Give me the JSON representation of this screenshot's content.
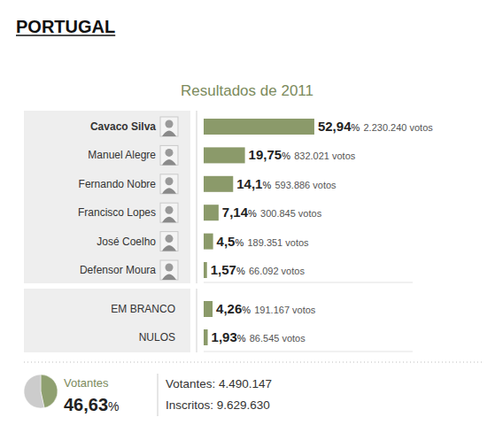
{
  "chart_data": [
    {
      "type": "bar",
      "orientation": "horizontal",
      "title": "PORTUGAL",
      "subtitle": "Resultados de 2011",
      "categories": [
        "Cavaco Silva",
        "Manuel Alegre",
        "Fernando Nobre",
        "Francisco Lopes",
        "José Coelho",
        "Defensor Moura"
      ],
      "values": [
        52.94,
        19.75,
        14.1,
        7.14,
        4.5,
        1.57
      ],
      "value_labels": [
        "52,94%",
        "19,75%",
        "14,1%",
        "7,14%",
        "4,5%",
        "1,57%"
      ],
      "votes": [
        2230240,
        832021,
        593886,
        300845,
        189351,
        66092
      ],
      "votes_labels": [
        "2.230.240 votos",
        "832.021 votos",
        "593.886 votos",
        "300.845 votos",
        "189.351 votos",
        "66.092 votos"
      ],
      "color": "#8b9a6a",
      "xlim": [
        0,
        100
      ],
      "xticks": [],
      "tick_labels": "y",
      "data_labels": true,
      "grid": false
    },
    {
      "type": "bar",
      "orientation": "horizontal",
      "categories": [
        "EM BRANCO",
        "NULOS"
      ],
      "values": [
        4.26,
        1.93
      ],
      "value_labels": [
        "4,26%",
        "1,93%"
      ],
      "votes": [
        191167,
        86545
      ],
      "votes_labels": [
        "191.167 votos",
        "86.545 votos"
      ],
      "color": "#8b9a6a",
      "xlim": [
        0,
        100
      ],
      "xticks": [],
      "tick_labels": "y",
      "data_labels": true,
      "grid": false
    },
    {
      "type": "pie",
      "categories": [
        "Votantes",
        null
      ],
      "values": [
        46.63,
        53.37
      ],
      "value_labels": [
        "46,63%",
        null
      ],
      "colors": [
        "#8fa070",
        "#cccccc"
      ],
      "annotations": [
        "Votantes: 4.490.147",
        "Inscritos: 9.629.630"
      ],
      "data_labels": true
    }
  ]
}
